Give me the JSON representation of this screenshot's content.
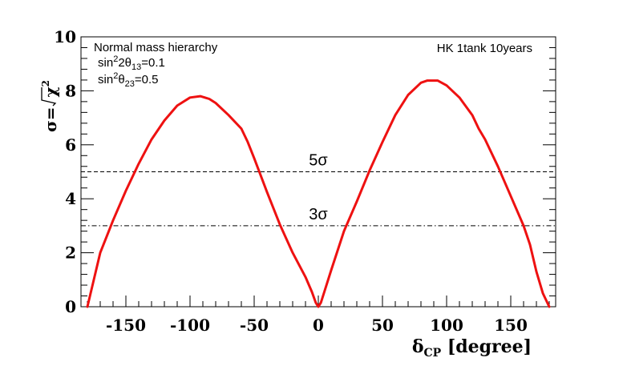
{
  "chart_data": {
    "type": "line",
    "xlabel": {
      "main": "δ",
      "sub": "CP",
      "rest": " [degree]"
    },
    "ylabel": {
      "sigma": "σ=",
      "chi": "χ",
      "exp": "2"
    },
    "xlim": [
      -185,
      185
    ],
    "ylim": [
      0,
      10
    ],
    "x_ticks": [
      -150,
      -100,
      -50,
      0,
      50,
      100,
      150
    ],
    "y_ticks": [
      0,
      2,
      4,
      6,
      8,
      10
    ],
    "annotation_top_left": {
      "line1": "Normal mass hierarchy",
      "line2": {
        "pre": "sin",
        "sup": "2",
        "mid": "2θ",
        "sub": "13",
        "post": "=0.1"
      },
      "line3": {
        "pre": "sin",
        "sup": "2",
        "mid": "θ",
        "sub": "23",
        "post": "=0.5"
      }
    },
    "annotation_top_right": "HK 1tank 10years",
    "reference_lines": [
      {
        "label": "5σ",
        "y": 5,
        "style": "dashed"
      },
      {
        "label": "3σ",
        "y": 3,
        "style": "dashdot"
      }
    ],
    "series": [
      {
        "color": "#ee1111",
        "x": [
          -180,
          -175,
          -170,
          -165,
          -160,
          -150,
          -140,
          -130,
          -120,
          -110,
          -100,
          -92,
          -85,
          -80,
          -70,
          -60,
          -55,
          -50,
          -40,
          -30,
          -20,
          -10,
          -5,
          -2,
          0,
          2,
          5,
          10,
          20,
          30,
          40,
          50,
          60,
          70,
          80,
          85,
          93,
          100,
          110,
          120,
          125,
          130,
          140,
          150,
          160,
          165,
          170,
          175,
          180
        ],
        "y": [
          0,
          1.0,
          2.0,
          2.6,
          3.2,
          4.3,
          5.3,
          6.2,
          6.9,
          7.45,
          7.75,
          7.8,
          7.7,
          7.55,
          7.1,
          6.6,
          6.1,
          5.5,
          4.25,
          3.05,
          2.0,
          1.1,
          0.55,
          0.15,
          0,
          0.15,
          0.6,
          1.35,
          2.8,
          3.9,
          5.05,
          6.1,
          7.1,
          7.85,
          8.3,
          8.38,
          8.38,
          8.2,
          7.75,
          7.1,
          6.6,
          6.2,
          5.2,
          4.1,
          3.0,
          2.3,
          1.3,
          0.5,
          0
        ]
      }
    ],
    "grid": false
  }
}
